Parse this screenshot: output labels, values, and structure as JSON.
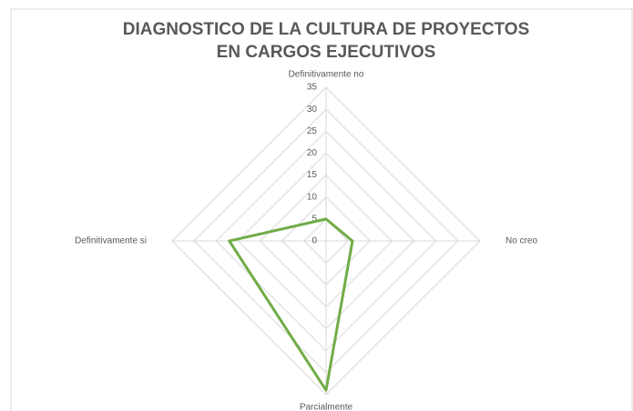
{
  "chart_data": {
    "type": "radar",
    "title": [
      "DIAGNOSTICO DE LA CULTURA DE PROYECTOS",
      "EN CARGOS EJECUTIVOS"
    ],
    "categories": [
      "Definitivamente no",
      "No creo",
      "Parcialmente",
      "Definitivamente si"
    ],
    "series": [
      {
        "color": "#70ad47",
        "values": [
          5,
          6,
          34,
          22
        ]
      }
    ],
    "rlim": [
      0,
      35
    ],
    "rticks": [
      0,
      5,
      10,
      15,
      20,
      25,
      30,
      35
    ],
    "grid": true
  }
}
